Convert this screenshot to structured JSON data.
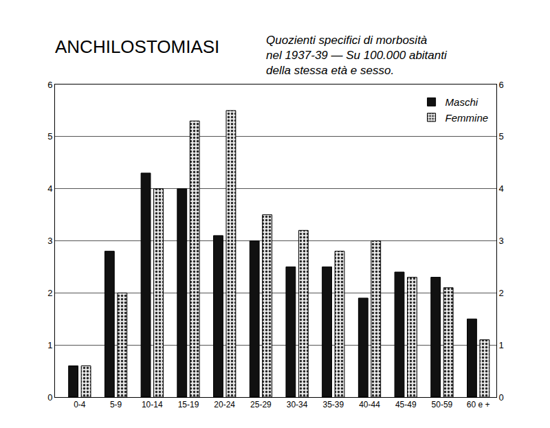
{
  "chart_data": {
    "type": "bar",
    "title": "ANCHILOSTOMIASI",
    "subtitle": "Quozienti specifici di morbosità\nnel 1937-39 — Su 100.000 abitanti\ndella stessa età e sesso.",
    "categories": [
      "0-4",
      "5-9",
      "10-14",
      "15-19",
      "20-24",
      "25-29",
      "30-34",
      "35-39",
      "40-44",
      "45-49",
      "50-59",
      "60 e +"
    ],
    "series": [
      {
        "name": "Maschi",
        "color": "#111111",
        "marker": "solid",
        "values": [
          0.6,
          2.8,
          4.3,
          4.0,
          3.1,
          3.0,
          2.5,
          2.5,
          1.9,
          2.4,
          2.3,
          1.5
        ]
      },
      {
        "name": "Femmine",
        "color": "#e6e6e6",
        "marker": "dotted",
        "values": [
          0.6,
          2.0,
          4.0,
          5.3,
          5.5,
          3.5,
          3.2,
          2.8,
          3.0,
          2.3,
          2.1,
          1.1
        ]
      }
    ],
    "ylim": [
      0,
      6
    ],
    "yticks": [
      0,
      1,
      2,
      3,
      4,
      5,
      6
    ],
    "grid": true,
    "legend": "top right"
  }
}
